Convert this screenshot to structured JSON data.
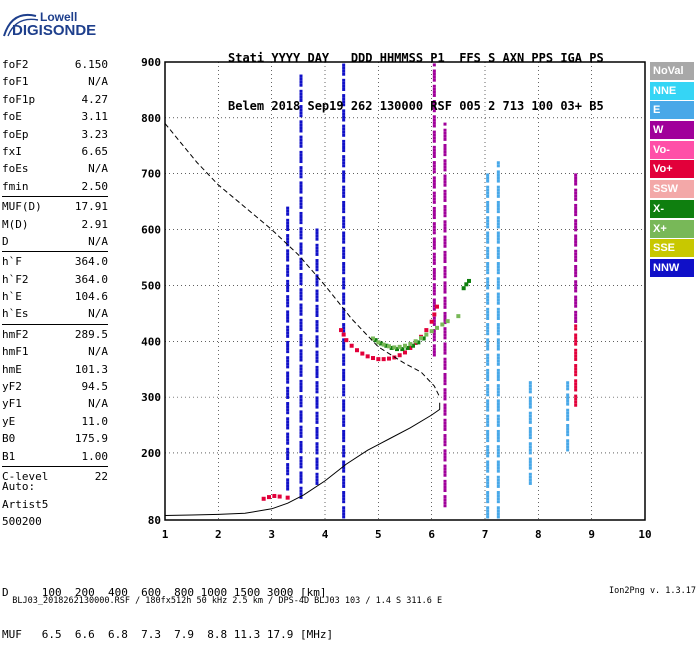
{
  "logo": {
    "line1": "Lowell",
    "line2": "DIGISONDE"
  },
  "header": {
    "line1": "Stati YYYY DAY   DDD HHMMSS P1  FFS S AXN PPS IGA PS",
    "line2": "Belem 2018 Sep19 262 130000 RSF 005 2 713 100 03+ B5"
  },
  "params_groups": [
    [
      {
        "k": "foF2",
        "v": "6.150"
      },
      {
        "k": "foF1",
        "v": "N/A"
      },
      {
        "k": "foF1p",
        "v": "4.27"
      },
      {
        "k": "foE",
        "v": "3.11"
      },
      {
        "k": "foEp",
        "v": "3.23"
      },
      {
        "k": "fxI",
        "v": "6.65"
      },
      {
        "k": "foEs",
        "v": "N/A"
      },
      {
        "k": "fmin",
        "v": "2.50"
      }
    ],
    [
      {
        "k": "MUF(D)",
        "v": "17.91"
      },
      {
        "k": "M(D)",
        "v": "2.91"
      },
      {
        "k": "D",
        "v": "N/A"
      }
    ],
    [
      {
        "k": "h`F",
        "v": "364.0"
      },
      {
        "k": "h`F2",
        "v": "364.0"
      },
      {
        "k": "h`E",
        "v": "104.6"
      },
      {
        "k": "h`Es",
        "v": "N/A"
      }
    ],
    [
      {
        "k": "hmF2",
        "v": "289.5"
      },
      {
        "k": "hmF1",
        "v": "N/A"
      },
      {
        "k": "hmE",
        "v": "101.3"
      },
      {
        "k": "yF2",
        "v": "94.5"
      },
      {
        "k": "yF1",
        "v": "N/A"
      },
      {
        "k": "yE",
        "v": "11.0"
      },
      {
        "k": "B0",
        "v": "175.9"
      },
      {
        "k": "B1",
        "v": "1.00"
      }
    ],
    [
      {
        "k": "C-level",
        "v": "22"
      }
    ]
  ],
  "auto": {
    "l1": "Auto:",
    "l2": "Artist5",
    "l3": "500200"
  },
  "legend": [
    {
      "label": "NoVal",
      "color": "#a8a8a8"
    },
    {
      "label": "NNE",
      "color": "#35d5f5"
    },
    {
      "label": "E",
      "color": "#48a8e8"
    },
    {
      "label": "W",
      "color": "#a0009a"
    },
    {
      "label": "Vo-",
      "color": "#ff4fa8"
    },
    {
      "label": "Vo+",
      "color": "#e2003a"
    },
    {
      "label": "SSW",
      "color": "#f3a8a8"
    },
    {
      "label": "X-",
      "color": "#0f7f0f"
    },
    {
      "label": "X+",
      "color": "#78b858"
    },
    {
      "label": "SSE",
      "color": "#c8c800"
    },
    {
      "label": "NNW",
      "color": "#1010c8"
    }
  ],
  "muf_table": {
    "line1": "D     100  200  400  600  800 1000 1500 3000 [km]",
    "line2": "MUF   6.5  6.6  6.8  7.3  7.9  8.8 11.3 17.9 [MHz]"
  },
  "footer": {
    "left": "BLJ03_2018262130000.RSF / 180fx512h 50 kHz 2.5 km / DPS-4D BLJ03 103 / 1.4 S 311.6 E",
    "right": "Ion2Png v. 1.3.17"
  },
  "chart_data": {
    "type": "scatter",
    "xlim": [
      1,
      10
    ],
    "ylim": [
      80,
      900
    ],
    "x_ticks": [
      "1",
      "2",
      "3",
      "4",
      "5",
      "6",
      "7",
      "8",
      "9",
      "10"
    ],
    "y_ticks": [
      "80",
      "200",
      "300",
      "400",
      "500",
      "600",
      "700",
      "800",
      "900"
    ],
    "y_tick_values": [
      80,
      200,
      300,
      400,
      500,
      600,
      700,
      800,
      900
    ],
    "x_unit": "MHz",
    "y_unit": "km",
    "traces": [
      {
        "name": "Vo+",
        "x": [
          2.85,
          2.95,
          3.05,
          3.15,
          3.3,
          4.3,
          4.35,
          4.4,
          4.5,
          4.6,
          4.7,
          4.8,
          4.9,
          5.0,
          5.1,
          5.2,
          5.3,
          5.4,
          5.5,
          5.6,
          5.7,
          5.8,
          5.9,
          6.0,
          6.05,
          6.1
        ],
        "y": [
          118,
          121,
          123,
          122,
          120,
          420,
          412,
          402,
          392,
          384,
          378,
          373,
          370,
          368,
          368,
          369,
          371,
          375,
          380,
          388,
          397,
          408,
          420,
          435,
          448,
          462
        ]
      },
      {
        "name": "X-",
        "x": [
          4.95,
          5.05,
          5.15,
          5.25,
          5.35,
          5.45,
          5.55,
          5.65,
          5.75,
          5.85,
          6.6,
          6.65,
          6.7
        ],
        "y": [
          402,
          396,
          392,
          388,
          386,
          386,
          388,
          392,
          398,
          405,
          495,
          502,
          508
        ]
      },
      {
        "name": "X+",
        "x": [
          4.9,
          5.0,
          5.1,
          5.2,
          5.3,
          5.4,
          5.5,
          5.6,
          5.7,
          5.8,
          5.9,
          6.0,
          6.1,
          6.2,
          6.3,
          6.5
        ],
        "y": [
          405,
          398,
          394,
          391,
          389,
          390,
          392,
          395,
          400,
          406,
          412,
          418,
          424,
          430,
          436,
          445
        ]
      }
    ],
    "columns": [
      {
        "name": "NNW",
        "x": 3.3,
        "ymin": 130,
        "ymax": 640
      },
      {
        "name": "NNW",
        "x": 3.55,
        "ymin": 115,
        "ymax": 880
      },
      {
        "name": "NNW",
        "x": 3.85,
        "ymin": 140,
        "ymax": 600
      },
      {
        "name": "NNW",
        "x": 4.35,
        "ymin": 80,
        "ymax": 900
      },
      {
        "name": "W",
        "x": 6.05,
        "ymin": 370,
        "ymax": 900
      },
      {
        "name": "W",
        "x": 6.25,
        "ymin": 100,
        "ymax": 790
      },
      {
        "name": "E",
        "x": 7.05,
        "ymin": 80,
        "ymax": 700
      },
      {
        "name": "E",
        "x": 7.25,
        "ymin": 80,
        "ymax": 720
      },
      {
        "name": "E",
        "x": 7.85,
        "ymin": 140,
        "ymax": 330
      },
      {
        "name": "E",
        "x": 8.55,
        "ymin": 200,
        "ymax": 330
      },
      {
        "name": "Vo+",
        "x": 8.7,
        "ymin": 280,
        "ymax": 430
      },
      {
        "name": "W",
        "x": 8.7,
        "ymin": 430,
        "ymax": 700
      }
    ],
    "profile": {
      "x": [
        1.0,
        1.5,
        2.0,
        2.5,
        3.0,
        3.3,
        3.6,
        4.0,
        4.4,
        4.8,
        5.2,
        5.6,
        6.0,
        6.15,
        6.15
      ],
      "y": [
        88,
        89,
        90,
        92,
        100,
        110,
        125,
        150,
        180,
        205,
        225,
        245,
        268,
        278,
        290
      ]
    },
    "model": {
      "x": [
        1.0,
        1.3,
        1.6,
        2.0,
        2.5,
        3.0,
        3.5,
        4.0,
        4.5,
        5.0,
        5.5,
        5.8,
        6.05,
        6.15
      ],
      "y": [
        790,
        755,
        720,
        680,
        640,
        600,
        555,
        500,
        440,
        390,
        360,
        345,
        320,
        300
      ]
    }
  }
}
